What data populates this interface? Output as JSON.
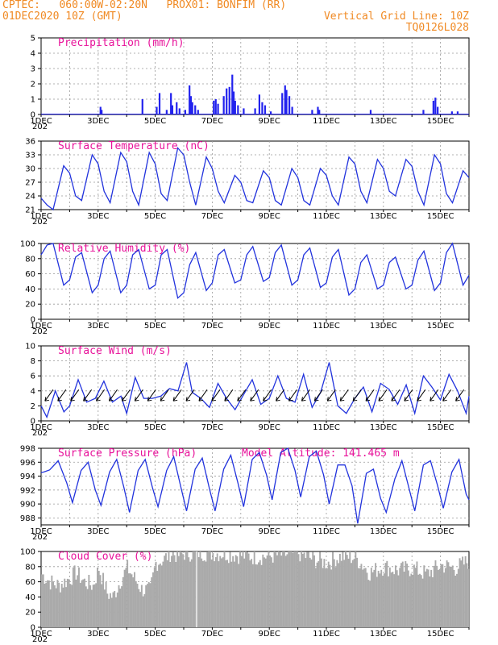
{
  "header": {
    "line1_left": "CPTEC:   060:00W-02:20N   PROX01: BONFIM (RR)",
    "line2_left": "01DEC2020 10Z (GMT)",
    "line2_right": "Vertical Grid Line: 10Z",
    "line3_right": "TQ0126L028"
  },
  "colors": {
    "line": "#2233dd",
    "bar": "#2222ee",
    "cloud": "#aaaaaa",
    "title": "#e8129a",
    "header": "#f08a24"
  },
  "x_ticks": [
    "1DEC",
    "3DEC",
    "5DEC",
    "7DEC",
    "9DEC",
    "11DEC",
    "13DEC",
    "15DEC"
  ],
  "x_first_label_sub": "202",
  "chart_data": [
    {
      "id": "precip",
      "type": "bar",
      "title": "Precipitation (mm/h)",
      "ylim": [
        0,
        5
      ],
      "yticks": [
        0,
        1,
        2,
        3,
        4,
        5
      ],
      "events": [
        [
          3.08,
          0.5
        ],
        [
          3.12,
          0.3
        ],
        [
          4.55,
          1.0
        ],
        [
          5.05,
          0.5
        ],
        [
          5.15,
          1.4
        ],
        [
          5.4,
          0.3
        ],
        [
          5.55,
          1.4
        ],
        [
          5.6,
          0.6
        ],
        [
          5.75,
          0.8
        ],
        [
          5.85,
          0.4
        ],
        [
          6.05,
          0.3
        ],
        [
          6.2,
          1.9
        ],
        [
          6.25,
          1.2
        ],
        [
          6.3,
          0.8
        ],
        [
          6.4,
          0.6
        ],
        [
          6.5,
          0.3
        ],
        [
          7.05,
          0.9
        ],
        [
          7.12,
          1.0
        ],
        [
          7.2,
          0.7
        ],
        [
          7.4,
          1.2
        ],
        [
          7.5,
          1.7
        ],
        [
          7.6,
          1.8
        ],
        [
          7.7,
          2.6
        ],
        [
          7.75,
          1.5
        ],
        [
          7.8,
          0.9
        ],
        [
          7.9,
          0.6
        ],
        [
          8.1,
          0.4
        ],
        [
          8.5,
          0.4
        ],
        [
          8.65,
          1.3
        ],
        [
          8.75,
          0.8
        ],
        [
          8.85,
          0.6
        ],
        [
          9.05,
          0.2
        ],
        [
          9.45,
          1.4
        ],
        [
          9.55,
          1.9
        ],
        [
          9.6,
          1.6
        ],
        [
          9.7,
          1.2
        ],
        [
          9.8,
          0.5
        ],
        [
          10.5,
          0.3
        ],
        [
          10.7,
          0.5
        ],
        [
          10.75,
          0.3
        ],
        [
          12.55,
          0.3
        ],
        [
          14.4,
          0.3
        ],
        [
          14.75,
          0.9
        ],
        [
          14.82,
          1.1
        ],
        [
          14.9,
          0.5
        ],
        [
          15.4,
          0.2
        ],
        [
          15.6,
          0.2
        ]
      ]
    },
    {
      "id": "temp",
      "type": "line",
      "title": "Surface Temperature (nC)",
      "ylim": [
        21,
        36
      ],
      "yticks": [
        21,
        24,
        27,
        30,
        33,
        36
      ],
      "x": [
        1.0,
        1.21,
        1.42,
        1.79,
        2.0,
        2.21,
        2.42,
        2.79,
        3.0,
        3.21,
        3.42,
        3.79,
        4.0,
        4.21,
        4.42,
        4.79,
        5.0,
        5.21,
        5.42,
        5.79,
        6.0,
        6.21,
        6.42,
        6.79,
        7.0,
        7.21,
        7.42,
        7.79,
        8.0,
        8.21,
        8.42,
        8.79,
        9.0,
        9.21,
        9.42,
        9.79,
        10.0,
        10.21,
        10.42,
        10.79,
        11.0,
        11.21,
        11.42,
        11.79,
        12.0,
        12.21,
        12.42,
        12.79,
        13.0,
        13.21,
        13.42,
        13.79,
        14.0,
        14.21,
        14.42,
        14.79,
        15.0,
        15.21,
        15.42,
        15.79,
        16.0
      ],
      "y": [
        23.5,
        22.0,
        21.0,
        30.6,
        29.0,
        24.0,
        23.0,
        33.0,
        31.0,
        25.0,
        22.5,
        33.5,
        31.5,
        25.0,
        22.0,
        33.5,
        31.0,
        24.5,
        23.0,
        34.5,
        33.0,
        27.0,
        22.0,
        32.5,
        30.0,
        25.0,
        22.5,
        28.5,
        27.0,
        23.0,
        22.5,
        29.5,
        28.0,
        23.0,
        22.0,
        30.0,
        28.0,
        23.0,
        22.0,
        30.0,
        28.5,
        24.0,
        22.0,
        32.5,
        31.0,
        25.0,
        22.5,
        32.0,
        30.0,
        25.0,
        24.0,
        32.0,
        30.5,
        25.0,
        22.0,
        33.0,
        31.0,
        24.5,
        22.5,
        29.5,
        28.0
      ]
    },
    {
      "id": "rh",
      "type": "line",
      "title": "Relative Humidity (%)",
      "ylim": [
        0,
        100
      ],
      "yticks": [
        0,
        20,
        40,
        60,
        80,
        100
      ],
      "x": [
        1.0,
        1.21,
        1.42,
        1.79,
        2.0,
        2.21,
        2.42,
        2.79,
        3.0,
        3.21,
        3.42,
        3.79,
        4.0,
        4.21,
        4.42,
        4.79,
        5.0,
        5.21,
        5.42,
        5.79,
        6.0,
        6.21,
        6.42,
        6.79,
        7.0,
        7.21,
        7.42,
        7.79,
        8.0,
        8.21,
        8.42,
        8.79,
        9.0,
        9.21,
        9.42,
        9.79,
        10.0,
        10.21,
        10.42,
        10.79,
        11.0,
        11.21,
        11.42,
        11.79,
        12.0,
        12.21,
        12.42,
        12.79,
        13.0,
        13.21,
        13.42,
        13.79,
        14.0,
        14.21,
        14.42,
        14.79,
        15.0,
        15.21,
        15.42,
        15.79,
        16.0
      ],
      "y": [
        85,
        98,
        100,
        45,
        52,
        82,
        88,
        35,
        45,
        80,
        90,
        35,
        45,
        85,
        92,
        40,
        45,
        85,
        92,
        28,
        35,
        72,
        88,
        38,
        48,
        85,
        92,
        48,
        52,
        85,
        96,
        50,
        55,
        88,
        98,
        45,
        52,
        85,
        94,
        42,
        48,
        82,
        92,
        32,
        40,
        75,
        85,
        40,
        45,
        75,
        82,
        40,
        45,
        78,
        90,
        38,
        48,
        88,
        100,
        45,
        58
      ]
    },
    {
      "id": "wind",
      "type": "line",
      "title": "Surface Wind (m/s)",
      "ylim": [
        0,
        10
      ],
      "yticks": [
        0,
        2,
        4,
        6,
        8,
        10
      ],
      "x": [
        1.0,
        1.2,
        1.5,
        1.8,
        2.0,
        2.3,
        2.6,
        2.9,
        3.2,
        3.5,
        3.8,
        4.0,
        4.3,
        4.6,
        4.9,
        5.2,
        5.5,
        5.8,
        6.1,
        6.3,
        6.6,
        6.9,
        7.2,
        7.5,
        7.8,
        8.1,
        8.4,
        8.7,
        9.0,
        9.3,
        9.6,
        9.9,
        10.2,
        10.5,
        10.8,
        11.1,
        11.4,
        11.7,
        12.0,
        12.3,
        12.6,
        12.9,
        13.2,
        13.5,
        13.8,
        14.1,
        14.4,
        14.7,
        15.0,
        15.3,
        15.6,
        15.9,
        16.0
      ],
      "y": [
        2.0,
        0.5,
        4.0,
        1.2,
        2.0,
        5.5,
        2.5,
        3.0,
        5.3,
        2.5,
        3.3,
        1.0,
        5.8,
        3.0,
        3.0,
        3.3,
        4.3,
        4.0,
        7.8,
        3.8,
        3.0,
        1.8,
        5.0,
        3.0,
        1.5,
        3.5,
        5.5,
        2.2,
        3.0,
        6.0,
        3.0,
        2.5,
        6.2,
        1.8,
        3.8,
        7.8,
        2.0,
        1.0,
        3.0,
        4.5,
        1.2,
        5.0,
        4.2,
        2.2,
        4.8,
        1.0,
        6.0,
        4.5,
        2.8,
        6.2,
        4.0,
        1.0,
        3.3
      ]
    },
    {
      "id": "pres",
      "type": "line",
      "title": "Surface Pressure (hPa)",
      "annotation": "Model Altitude: 141.465 m",
      "ylim": [
        987,
        998
      ],
      "yticks": [
        988,
        990,
        992,
        994,
        996,
        998
      ],
      "x": [
        1.0,
        1.1,
        1.3,
        1.6,
        1.9,
        2.1,
        2.4,
        2.65,
        2.9,
        3.1,
        3.4,
        3.65,
        3.9,
        4.1,
        4.4,
        4.65,
        4.9,
        5.1,
        5.4,
        5.65,
        5.9,
        6.1,
        6.4,
        6.65,
        6.9,
        7.1,
        7.4,
        7.65,
        7.9,
        8.1,
        8.4,
        8.65,
        8.9,
        9.1,
        9.4,
        9.65,
        9.9,
        10.1,
        10.4,
        10.65,
        10.9,
        11.1,
        11.4,
        11.65,
        11.9,
        12.1,
        12.4,
        12.65,
        12.9,
        13.1,
        13.4,
        13.65,
        13.9,
        14.1,
        14.4,
        14.65,
        14.9,
        15.1,
        15.4,
        15.65,
        15.9,
        16.0
      ],
      "y": [
        994.5,
        994.6,
        994.9,
        996.2,
        993.0,
        990.2,
        994.8,
        996.0,
        992.0,
        989.8,
        994.6,
        996.4,
        992.4,
        988.8,
        994.8,
        996.4,
        992.4,
        989.6,
        994.8,
        996.8,
        992.4,
        989.0,
        995.0,
        996.6,
        992.2,
        989.0,
        995.0,
        997.0,
        993.0,
        989.6,
        996.4,
        997.4,
        994.2,
        990.6,
        997.4,
        998.0,
        994.8,
        991.0,
        996.8,
        997.6,
        994.2,
        990.0,
        995.6,
        995.6,
        992.6,
        987.2,
        994.4,
        995.0,
        990.8,
        988.8,
        993.6,
        996.2,
        992.2,
        989.0,
        995.6,
        996.2,
        992.6,
        989.4,
        994.6,
        996.4,
        991.4,
        990.6
      ]
    },
    {
      "id": "cloud",
      "type": "area",
      "title": "Cloud Cover (%)",
      "ylim": [
        0,
        100
      ],
      "yticks": [
        0,
        20,
        40,
        60,
        80,
        100
      ],
      "x": [
        1.0,
        1.3,
        1.6,
        2.0,
        2.2,
        2.5,
        2.8,
        3.0,
        3.3,
        3.5,
        3.8,
        4.0,
        4.3,
        4.5,
        4.8,
        5.0,
        5.3,
        5.5,
        5.8,
        6.0,
        6.3,
        6.5,
        6.8,
        7.0,
        7.5,
        8.0,
        8.5,
        9.0,
        9.5,
        10.0,
        10.5,
        11.0,
        11.5,
        12.0,
        12.5,
        13.0,
        13.5,
        14.0,
        14.5,
        15.0,
        15.5,
        16.0
      ],
      "y": [
        70,
        60,
        55,
        65,
        72,
        60,
        55,
        78,
        45,
        40,
        65,
        78,
        62,
        50,
        48,
        85,
        90,
        98,
        95,
        98,
        98,
        99,
        98,
        98,
        97,
        95,
        93,
        94,
        96,
        98,
        90,
        85,
        94,
        92,
        72,
        80,
        75,
        78,
        70,
        82,
        78,
        88
      ]
    }
  ]
}
